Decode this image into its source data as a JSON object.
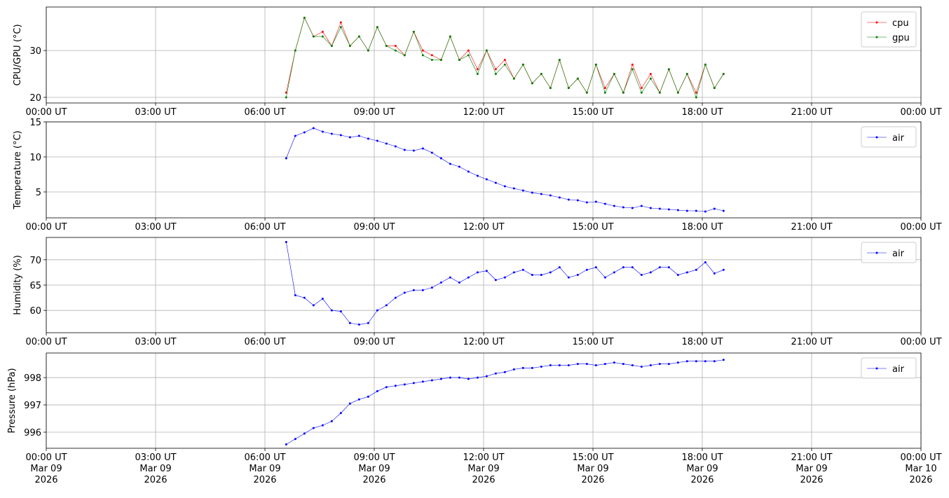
{
  "chart_data": [
    {
      "type": "line",
      "ylabel": "CPU/GPU (°C)",
      "legend": "upper right",
      "grid": true,
      "x": [
        "2026-03-09T06:35",
        "2026-03-09T06:50",
        "2026-03-09T07:05",
        "2026-03-09T07:20",
        "2026-03-09T07:35",
        "2026-03-09T07:50",
        "2026-03-09T08:05",
        "2026-03-09T08:20",
        "2026-03-09T08:35",
        "2026-03-09T08:50",
        "2026-03-09T09:05",
        "2026-03-09T09:20",
        "2026-03-09T09:35",
        "2026-03-09T09:50",
        "2026-03-09T10:05",
        "2026-03-09T10:20",
        "2026-03-09T10:35",
        "2026-03-09T10:50",
        "2026-03-09T11:05",
        "2026-03-09T11:20",
        "2026-03-09T11:35",
        "2026-03-09T11:50",
        "2026-03-09T12:05",
        "2026-03-09T12:20",
        "2026-03-09T12:35",
        "2026-03-09T12:50",
        "2026-03-09T13:05",
        "2026-03-09T13:20",
        "2026-03-09T13:35",
        "2026-03-09T13:50",
        "2026-03-09T14:05",
        "2026-03-09T14:20",
        "2026-03-09T14:35",
        "2026-03-09T14:50",
        "2026-03-09T15:05",
        "2026-03-09T15:20",
        "2026-03-09T15:35",
        "2026-03-09T15:50",
        "2026-03-09T16:05",
        "2026-03-09T16:20",
        "2026-03-09T16:35",
        "2026-03-09T16:50",
        "2026-03-09T17:05",
        "2026-03-09T17:20",
        "2026-03-09T17:35",
        "2026-03-09T17:50",
        "2026-03-09T18:05",
        "2026-03-09T18:20",
        "2026-03-09T18:35"
      ],
      "series": [
        {
          "name": "cpu",
          "color": "#ff0000",
          "values": [
            21,
            30,
            37,
            33,
            34,
            31,
            36,
            31,
            33,
            30,
            35,
            31,
            31,
            29,
            34,
            30,
            29,
            28,
            33,
            28,
            30,
            26,
            30,
            26,
            28,
            24,
            27,
            23,
            25,
            22,
            28,
            22,
            24,
            21,
            27,
            22,
            25,
            21,
            27,
            22,
            25,
            21,
            26,
            21,
            25,
            21,
            27,
            22,
            25
          ]
        },
        {
          "name": "gpu",
          "color": "#008000",
          "values": [
            20,
            30,
            37,
            33,
            33,
            31,
            35,
            31,
            33,
            30,
            35,
            31,
            30,
            29,
            34,
            29,
            28,
            28,
            33,
            28,
            29,
            25,
            30,
            25,
            27,
            24,
            27,
            23,
            25,
            22,
            28,
            22,
            24,
            21,
            27,
            21,
            25,
            21,
            26,
            21,
            24,
            21,
            26,
            21,
            25,
            20,
            27,
            22,
            25
          ]
        }
      ],
      "xlim": [
        "2026-03-09T00:00",
        "2026-03-10T00:00"
      ],
      "xticks": [
        {
          "value": "2026-03-09T00:00",
          "label": "00:00 UT"
        },
        {
          "value": "2026-03-09T03:00",
          "label": "03:00 UT"
        },
        {
          "value": "2026-03-09T06:00",
          "label": "06:00 UT"
        },
        {
          "value": "2026-03-09T09:00",
          "label": "09:00 UT"
        },
        {
          "value": "2026-03-09T12:00",
          "label": "12:00 UT"
        },
        {
          "value": "2026-03-09T15:00",
          "label": "15:00 UT"
        },
        {
          "value": "2026-03-09T18:00",
          "label": "18:00 UT"
        },
        {
          "value": "2026-03-09T21:00",
          "label": "21:00 UT"
        },
        {
          "value": "2026-03-10T00:00",
          "label": "00:00 UT"
        }
      ],
      "ylim": [
        18.8,
        39.3
      ],
      "yticks": [
        20,
        30
      ]
    },
    {
      "type": "line",
      "ylabel": "Temperature (°C)",
      "legend": "upper right",
      "grid": true,
      "x": [
        "2026-03-09T06:35",
        "2026-03-09T06:50",
        "2026-03-09T07:05",
        "2026-03-09T07:20",
        "2026-03-09T07:35",
        "2026-03-09T07:50",
        "2026-03-09T08:05",
        "2026-03-09T08:20",
        "2026-03-09T08:35",
        "2026-03-09T08:50",
        "2026-03-09T09:05",
        "2026-03-09T09:20",
        "2026-03-09T09:35",
        "2026-03-09T09:50",
        "2026-03-09T10:05",
        "2026-03-09T10:20",
        "2026-03-09T10:35",
        "2026-03-09T10:50",
        "2026-03-09T11:05",
        "2026-03-09T11:20",
        "2026-03-09T11:35",
        "2026-03-09T11:50",
        "2026-03-09T12:05",
        "2026-03-09T12:20",
        "2026-03-09T12:35",
        "2026-03-09T12:50",
        "2026-03-09T13:05",
        "2026-03-09T13:20",
        "2026-03-09T13:35",
        "2026-03-09T13:50",
        "2026-03-09T14:05",
        "2026-03-09T14:20",
        "2026-03-09T14:35",
        "2026-03-09T14:50",
        "2026-03-09T15:05",
        "2026-03-09T15:20",
        "2026-03-09T15:35",
        "2026-03-09T15:50",
        "2026-03-09T16:05",
        "2026-03-09T16:20",
        "2026-03-09T16:35",
        "2026-03-09T16:50",
        "2026-03-09T17:05",
        "2026-03-09T17:20",
        "2026-03-09T17:35",
        "2026-03-09T17:50",
        "2026-03-09T18:05",
        "2026-03-09T18:20",
        "2026-03-09T18:35"
      ],
      "series": [
        {
          "name": "air",
          "color": "#0000ff",
          "values": [
            9.8,
            13,
            13.5,
            14.1,
            13.6,
            13.3,
            13.1,
            12.8,
            13.0,
            12.6,
            12.3,
            11.9,
            11.5,
            11.0,
            10.9,
            11.2,
            10.6,
            9.8,
            9.0,
            8.6,
            7.9,
            7.3,
            6.8,
            6.3,
            5.8,
            5.5,
            5.2,
            4.9,
            4.7,
            4.5,
            4.2,
            3.9,
            3.8,
            3.5,
            3.6,
            3.3,
            3.0,
            2.8,
            2.7,
            3.0,
            2.7,
            2.6,
            2.5,
            2.4,
            2.3,
            2.3,
            2.2,
            2.6,
            2.3
          ]
        }
      ],
      "xlim": [
        "2026-03-09T00:00",
        "2026-03-10T00:00"
      ],
      "xticks": [
        {
          "value": "2026-03-09T00:00",
          "label": "00:00 UT"
        },
        {
          "value": "2026-03-09T03:00",
          "label": "03:00 UT"
        },
        {
          "value": "2026-03-09T06:00",
          "label": "06:00 UT"
        },
        {
          "value": "2026-03-09T09:00",
          "label": "09:00 UT"
        },
        {
          "value": "2026-03-09T12:00",
          "label": "12:00 UT"
        },
        {
          "value": "2026-03-09T15:00",
          "label": "15:00 UT"
        },
        {
          "value": "2026-03-09T18:00",
          "label": "18:00 UT"
        },
        {
          "value": "2026-03-09T21:00",
          "label": "21:00 UT"
        },
        {
          "value": "2026-03-10T00:00",
          "label": "00:00 UT"
        }
      ],
      "ylim": [
        1.3,
        15
      ],
      "yticks": [
        5,
        10,
        15
      ]
    },
    {
      "type": "line",
      "ylabel": "Humidity (%)",
      "legend": "upper right",
      "grid": true,
      "x": [
        "2026-03-09T06:35",
        "2026-03-09T06:50",
        "2026-03-09T07:05",
        "2026-03-09T07:20",
        "2026-03-09T07:35",
        "2026-03-09T07:50",
        "2026-03-09T08:05",
        "2026-03-09T08:20",
        "2026-03-09T08:35",
        "2026-03-09T08:50",
        "2026-03-09T09:05",
        "2026-03-09T09:20",
        "2026-03-09T09:35",
        "2026-03-09T09:50",
        "2026-03-09T10:05",
        "2026-03-09T10:20",
        "2026-03-09T10:35",
        "2026-03-09T10:50",
        "2026-03-09T11:05",
        "2026-03-09T11:20",
        "2026-03-09T11:35",
        "2026-03-09T11:50",
        "2026-03-09T12:05",
        "2026-03-09T12:20",
        "2026-03-09T12:35",
        "2026-03-09T12:50",
        "2026-03-09T13:05",
        "2026-03-09T13:20",
        "2026-03-09T13:35",
        "2026-03-09T13:50",
        "2026-03-09T14:05",
        "2026-03-09T14:20",
        "2026-03-09T14:35",
        "2026-03-09T14:50",
        "2026-03-09T15:05",
        "2026-03-09T15:20",
        "2026-03-09T15:35",
        "2026-03-09T15:50",
        "2026-03-09T16:05",
        "2026-03-09T16:20",
        "2026-03-09T16:35",
        "2026-03-09T16:50",
        "2026-03-09T17:05",
        "2026-03-09T17:20",
        "2026-03-09T17:35",
        "2026-03-09T17:50",
        "2026-03-09T18:05",
        "2026-03-09T18:20",
        "2026-03-09T18:35"
      ],
      "series": [
        {
          "name": "air",
          "color": "#0000ff",
          "values": [
            73.5,
            63,
            62.5,
            61,
            62.3,
            60,
            59.8,
            57.5,
            57.2,
            57.5,
            60,
            61,
            62.5,
            63.5,
            64,
            64,
            64.5,
            65.5,
            66.5,
            65.5,
            66.5,
            67.5,
            67.8,
            66,
            66.5,
            67.5,
            68,
            67,
            67,
            67.5,
            68.5,
            66.5,
            67,
            68,
            68.5,
            66.5,
            67.5,
            68.5,
            68.5,
            67,
            67.5,
            68.5,
            68.5,
            67,
            67.5,
            68,
            69.5,
            67.3,
            68
          ]
        }
      ],
      "xlim": [
        "2026-03-09T00:00",
        "2026-03-10T00:00"
      ],
      "xticks": [
        {
          "value": "2026-03-09T00:00",
          "label": "00:00 UT"
        },
        {
          "value": "2026-03-09T03:00",
          "label": "03:00 UT"
        },
        {
          "value": "2026-03-09T06:00",
          "label": "06:00 UT"
        },
        {
          "value": "2026-03-09T09:00",
          "label": "09:00 UT"
        },
        {
          "value": "2026-03-09T12:00",
          "label": "12:00 UT"
        },
        {
          "value": "2026-03-09T15:00",
          "label": "15:00 UT"
        },
        {
          "value": "2026-03-09T18:00",
          "label": "18:00 UT"
        },
        {
          "value": "2026-03-09T21:00",
          "label": "21:00 UT"
        },
        {
          "value": "2026-03-10T00:00",
          "label": "00:00 UT"
        }
      ],
      "ylim": [
        55.6,
        74.4
      ],
      "yticks": [
        60,
        65,
        70
      ]
    },
    {
      "type": "line",
      "ylabel": "Pressure (hPa)",
      "legend": "upper right",
      "grid": true,
      "x": [
        "2026-03-09T06:35",
        "2026-03-09T06:50",
        "2026-03-09T07:05",
        "2026-03-09T07:20",
        "2026-03-09T07:35",
        "2026-03-09T07:50",
        "2026-03-09T08:05",
        "2026-03-09T08:20",
        "2026-03-09T08:35",
        "2026-03-09T08:50",
        "2026-03-09T09:05",
        "2026-03-09T09:20",
        "2026-03-09T09:35",
        "2026-03-09T09:50",
        "2026-03-09T10:05",
        "2026-03-09T10:20",
        "2026-03-09T10:35",
        "2026-03-09T10:50",
        "2026-03-09T11:05",
        "2026-03-09T11:20",
        "2026-03-09T11:35",
        "2026-03-09T11:50",
        "2026-03-09T12:05",
        "2026-03-09T12:20",
        "2026-03-09T12:35",
        "2026-03-09T12:50",
        "2026-03-09T13:05",
        "2026-03-09T13:20",
        "2026-03-09T13:35",
        "2026-03-09T13:50",
        "2026-03-09T14:05",
        "2026-03-09T14:20",
        "2026-03-09T14:35",
        "2026-03-09T14:50",
        "2026-03-09T15:05",
        "2026-03-09T15:20",
        "2026-03-09T15:35",
        "2026-03-09T15:50",
        "2026-03-09T16:05",
        "2026-03-09T16:20",
        "2026-03-09T16:35",
        "2026-03-09T16:50",
        "2026-03-09T17:05",
        "2026-03-09T17:20",
        "2026-03-09T17:35",
        "2026-03-09T17:50",
        "2026-03-09T18:05",
        "2026-03-09T18:20",
        "2026-03-09T18:35"
      ],
      "series": [
        {
          "name": "air",
          "color": "#0000ff",
          "values": [
            995.55,
            995.75,
            995.95,
            996.15,
            996.25,
            996.4,
            996.7,
            997.05,
            997.2,
            997.3,
            997.5,
            997.65,
            997.7,
            997.75,
            997.8,
            997.85,
            997.9,
            997.95,
            998.0,
            998.0,
            997.95,
            998.0,
            998.05,
            998.15,
            998.2,
            998.3,
            998.35,
            998.35,
            998.4,
            998.45,
            998.45,
            998.45,
            998.5,
            998.5,
            998.45,
            998.5,
            998.55,
            998.5,
            998.45,
            998.4,
            998.45,
            998.5,
            998.5,
            998.55,
            998.6,
            998.6,
            998.6,
            998.6,
            998.65
          ]
        }
      ],
      "xlim": [
        "2026-03-09T00:00",
        "2026-03-10T00:00"
      ],
      "xticks": [
        {
          "value": "2026-03-09T00:00",
          "label": "00:00 UT\nMar 09\n2026"
        },
        {
          "value": "2026-03-09T03:00",
          "label": "03:00 UT\nMar 09\n2026"
        },
        {
          "value": "2026-03-09T06:00",
          "label": "06:00 UT\nMar 09\n2026"
        },
        {
          "value": "2026-03-09T09:00",
          "label": "09:00 UT\nMar 09\n2026"
        },
        {
          "value": "2026-03-09T12:00",
          "label": "12:00 UT\nMar 09\n2026"
        },
        {
          "value": "2026-03-09T15:00",
          "label": "15:00 UT\nMar 09\n2026"
        },
        {
          "value": "2026-03-09T18:00",
          "label": "18:00 UT\nMar 09\n2026"
        },
        {
          "value": "2026-03-09T21:00",
          "label": "21:00 UT\nMar 09\n2026"
        },
        {
          "value": "2026-03-10T00:00",
          "label": "00:00 UT\nMar 10\n2026"
        }
      ],
      "ylim": [
        995.41,
        998.9
      ],
      "yticks": [
        996,
        997,
        998
      ]
    }
  ]
}
